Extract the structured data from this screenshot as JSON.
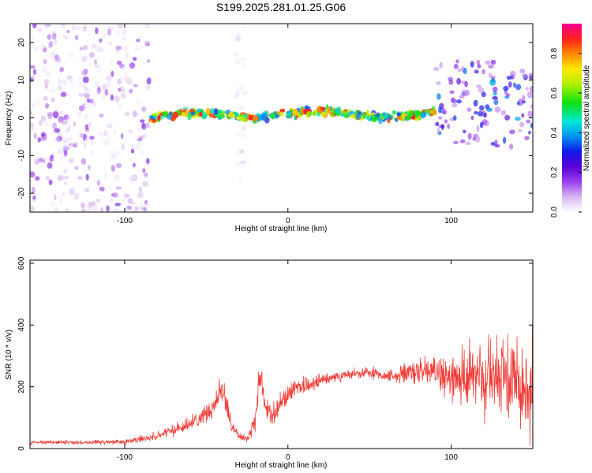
{
  "title": "S199.2025.281.01.25.G06",
  "colors": {
    "snr_line": "#f03c37",
    "frame": "#000000"
  },
  "chart_data": [
    {
      "type": "heatmap",
      "name": "spectrogram",
      "xlabel": "Height of straight line (km)",
      "ylabel": "Frequency (Hz)",
      "xlim": [
        -158,
        150
      ],
      "ylim": [
        -25,
        25
      ],
      "xticks": [
        -100,
        0,
        100
      ],
      "xtick_labels": [
        "-100",
        "0",
        "100"
      ],
      "yticks": [
        -20,
        -10,
        0,
        10,
        20
      ],
      "ytick_labels": [
        "-20",
        "-10",
        "0",
        "10",
        "20"
      ],
      "colorbar": {
        "label": "Normalized spectral amplitude",
        "range": [
          0.0,
          0.95
        ],
        "ticks": [
          0.0,
          0.2,
          0.4,
          0.6,
          0.8
        ],
        "tick_labels": [
          "0.0",
          "0.2",
          "0.4",
          "0.6",
          "0.8"
        ]
      },
      "features": [
        {
          "description": "diffuse noise",
          "x_range": [
            -158,
            -85
          ],
          "freq_range": [
            -25,
            25
          ],
          "amplitude": [
            0.02,
            0.2
          ]
        },
        {
          "description": "noise band",
          "x_range": [
            -32,
            -26
          ],
          "freq_range": [
            -20,
            25
          ],
          "amplitude": [
            0.02,
            0.08
          ]
        },
        {
          "description": "signal line",
          "x_range": [
            -85,
            90
          ],
          "freq_center": 1,
          "freq_halfwidth": 1.5,
          "amplitude": [
            0.3,
            0.9
          ]
        },
        {
          "description": "broadening signal",
          "x_range": [
            90,
            150
          ],
          "freq_range": [
            -8,
            15
          ],
          "amplitude": [
            0.1,
            0.4
          ]
        }
      ]
    },
    {
      "type": "line",
      "name": "snr",
      "xlabel": "Height of straight line (km)",
      "ylabel": "SNR (10 * v/v)",
      "xlim": [
        -158,
        150
      ],
      "ylim": [
        0,
        610
      ],
      "xticks": [
        -100,
        0,
        100
      ],
      "xtick_labels": [
        "-100",
        "0",
        "100"
      ],
      "yticks": [
        0,
        200,
        400,
        600
      ],
      "ytick_labels": [
        "0",
        "200",
        "400",
        "600"
      ],
      "series": [
        {
          "name": "SNR",
          "x": [
            -158,
            -140,
            -120,
            -100,
            -80,
            -70,
            -60,
            -50,
            -45,
            -40,
            -38,
            -35,
            -30,
            -25,
            -20,
            -18,
            -16,
            -14,
            -12,
            -10,
            -5,
            0,
            10,
            20,
            30,
            40,
            50,
            60,
            70,
            80,
            90,
            100,
            110,
            120,
            130,
            140,
            150
          ],
          "values": [
            20,
            20,
            20,
            22,
            40,
            60,
            80,
            110,
            150,
            200,
            160,
            80,
            40,
            30,
            90,
            200,
            230,
            150,
            120,
            110,
            140,
            180,
            200,
            220,
            235,
            240,
            245,
            235,
            240,
            245,
            250,
            240,
            230,
            220,
            225,
            230,
            220
          ],
          "spread": [
            10,
            10,
            10,
            12,
            20,
            25,
            30,
            40,
            60,
            70,
            70,
            40,
            20,
            15,
            50,
            70,
            60,
            60,
            50,
            50,
            50,
            50,
            40,
            30,
            25,
            25,
            25,
            30,
            35,
            60,
            80,
            110,
            150,
            180,
            200,
            220,
            230
          ]
        }
      ]
    }
  ]
}
